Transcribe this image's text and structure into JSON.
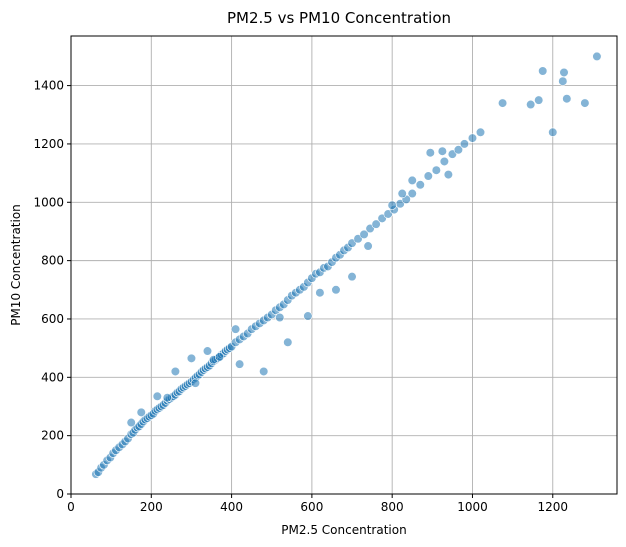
{
  "chart_data": {
    "type": "scatter",
    "title": "PM2.5 vs PM10 Concentration",
    "xlabel": "PM2.5 Concentration",
    "ylabel": "PM10 Concentration",
    "xlim": [
      0,
      1360
    ],
    "ylim": [
      0,
      1570
    ],
    "xticks": [
      0,
      200,
      400,
      600,
      800,
      1000,
      1200
    ],
    "yticks": [
      0,
      200,
      400,
      600,
      800,
      1000,
      1200,
      1400
    ],
    "grid": true,
    "point_color": "#1f77b4",
    "point_alpha": 0.55,
    "series": [
      {
        "x": [
          62,
          68,
          75,
          82,
          90,
          98,
          105,
          112,
          120,
          128,
          135,
          142,
          150,
          155,
          160,
          165,
          170,
          175,
          180,
          185,
          190,
          195,
          200,
          205,
          210,
          215,
          220,
          225,
          230,
          235,
          240,
          245,
          250,
          255,
          260,
          265,
          270,
          275,
          280,
          285,
          290,
          295,
          300,
          305,
          310,
          315,
          320,
          325,
          330,
          335,
          340,
          345,
          350,
          355,
          360,
          365,
          370,
          375,
          380,
          385,
          390,
          395,
          400,
          410,
          420,
          430,
          440,
          450,
          460,
          470,
          480,
          490,
          500,
          510,
          520,
          530,
          540,
          550,
          560,
          570,
          580,
          590,
          600,
          610,
          620,
          630,
          640,
          650,
          660,
          670,
          680,
          690,
          700,
          715,
          730,
          745,
          760,
          775,
          790,
          805,
          820,
          835,
          850,
          870,
          890,
          910,
          930,
          950,
          965,
          980,
          1000,
          1020,
          1075,
          1145,
          1165,
          1175,
          1200,
          1225,
          1228,
          1235,
          1280,
          1310,
          150,
          175,
          215,
          240,
          260,
          300,
          310,
          340,
          355,
          370,
          410,
          420,
          480,
          520,
          540,
          590,
          620,
          660,
          700,
          740,
          800,
          825,
          850,
          895,
          925,
          940
        ],
        "y": [
          68,
          75,
          90,
          100,
          115,
          125,
          140,
          150,
          160,
          170,
          180,
          190,
          205,
          210,
          220,
          228,
          232,
          240,
          248,
          255,
          260,
          265,
          270,
          275,
          285,
          290,
          295,
          300,
          305,
          312,
          320,
          325,
          330,
          335,
          340,
          348,
          352,
          360,
          365,
          370,
          375,
          380,
          385,
          392,
          398,
          405,
          410,
          418,
          425,
          430,
          435,
          440,
          448,
          455,
          460,
          465,
          470,
          478,
          482,
          490,
          495,
          500,
          505,
          520,
          530,
          540,
          550,
          565,
          575,
          585,
          595,
          605,
          615,
          630,
          640,
          650,
          665,
          680,
          690,
          700,
          710,
          725,
          740,
          755,
          760,
          775,
          780,
          795,
          810,
          820,
          835,
          845,
          860,
          875,
          890,
          910,
          925,
          945,
          960,
          975,
          995,
          1010,
          1030,
          1060,
          1090,
          1110,
          1140,
          1165,
          1180,
          1200,
          1220,
          1240,
          1340,
          1335,
          1350,
          1450,
          1240,
          1415,
          1445,
          1355,
          1340,
          1500,
          245,
          280,
          335,
          330,
          420,
          465,
          380,
          490,
          460,
          470,
          565,
          445,
          420,
          605,
          520,
          610,
          690,
          700,
          745,
          850,
          990,
          1030,
          1075,
          1170,
          1175,
          1095
        ]
      }
    ]
  }
}
